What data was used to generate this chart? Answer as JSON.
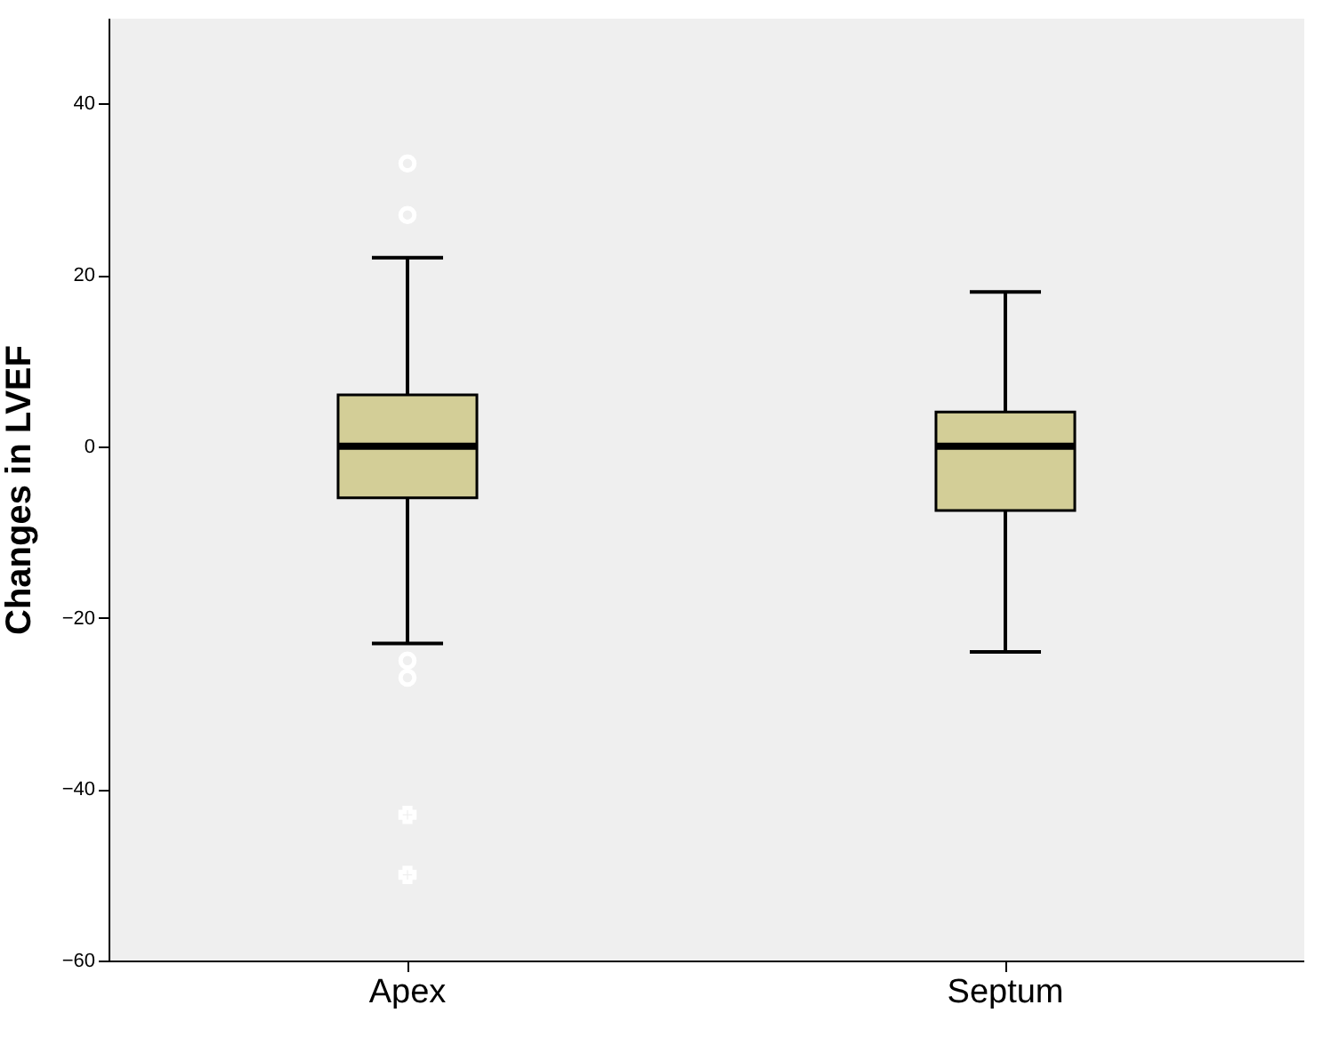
{
  "chart_data": {
    "type": "box",
    "ylabel": "Changes in LVEF",
    "categories": [
      "Apex",
      "Septum"
    ],
    "boxes": [
      {
        "low": -23,
        "q1": -6,
        "median": 0,
        "q3": 6,
        "high": 22,
        "outliers": [
          33,
          27,
          -25,
          -27,
          -43,
          -50
        ]
      },
      {
        "low": -24,
        "q1": -7.5,
        "median": 0,
        "q3": 4,
        "high": 18
      }
    ],
    "color": "#d3ce97",
    "ylim": [
      -60,
      50
    ],
    "yticks": [
      -60,
      -40,
      -20,
      0,
      20,
      40
    ],
    "grid": false
  }
}
